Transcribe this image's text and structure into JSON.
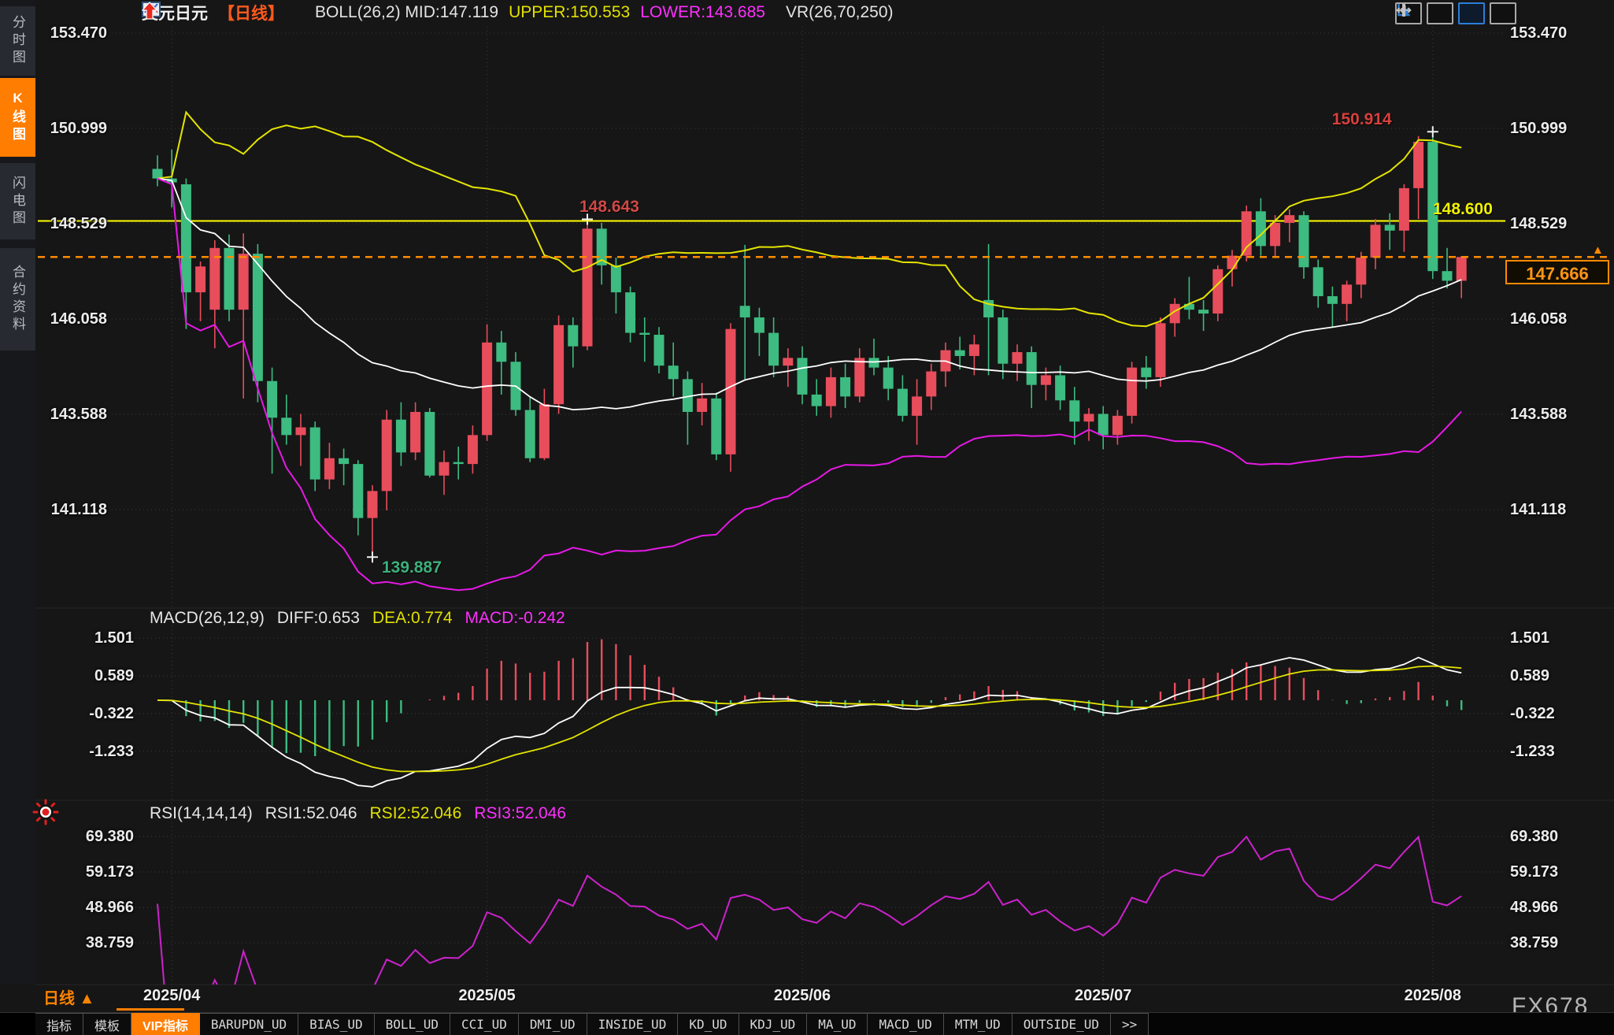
{
  "colors": {
    "background": "#161616",
    "up_red": "#e84d5c",
    "down_green": "#3dbb80",
    "boll_mid_white": "#ffffff",
    "boll_upper_yellow": "#e4e400",
    "boll_lower_magenta": "#e619e6",
    "accent_orange": "#ff7d00",
    "current_price_orange": "#ff8a00",
    "hline_yellow": "#ffff00",
    "annotation_red": "#d8403c",
    "annotation_green": "#3db07c",
    "grid": "#3a3a3a",
    "rsi_line": "#cc22cc"
  },
  "sidebar": {
    "items": [
      {
        "label": "分时图",
        "active": false
      },
      {
        "label": "K线图",
        "active": true
      },
      {
        "label": "闪电图",
        "active": false
      },
      {
        "label": "合约资料",
        "active": false
      }
    ]
  },
  "header": {
    "symbol": "美元日元",
    "period_tag": "【日线】",
    "boll_mid": "BOLL(26,2) MID:147.119",
    "upper": "UPPER:150.553",
    "lower": "LOWER:143.685",
    "vr": "VR(26,70,250)"
  },
  "toolbar": {
    "buttons": [
      {
        "name": "pan-crosshair-button",
        "active": false
      },
      {
        "name": "chart-axes-bars-button",
        "active": false
      },
      {
        "name": "chart-axes-flag-button",
        "active": true
      },
      {
        "name": "compress-axis-button",
        "active": false
      }
    ]
  },
  "chart_data": {
    "type": "candlestick",
    "title": "美元日元 日线 (USD/JPY Daily)",
    "legend_position": "top",
    "grid": "dotted",
    "price_axis_ticks": [
      "153.470",
      "150.999",
      "148.529",
      "146.058",
      "143.588",
      "141.118"
    ],
    "month_ticks": [
      {
        "index": 1,
        "label": "2025/04"
      },
      {
        "index": 23,
        "label": "2025/05"
      },
      {
        "index": 45,
        "label": "2025/06"
      },
      {
        "index": 66,
        "label": "2025/07"
      },
      {
        "index": 89,
        "label": "2025/08"
      }
    ],
    "candles_ohlc": [
      [
        149.95,
        150.3,
        149.5,
        149.7
      ],
      [
        149.7,
        150.45,
        148.95,
        149.6
      ],
      [
        149.55,
        149.7,
        145.8,
        146.75
      ],
      [
        146.75,
        147.55,
        146.0,
        147.42
      ],
      [
        146.3,
        148.1,
        145.3,
        147.9
      ],
      [
        147.9,
        148.25,
        146.0,
        146.3
      ],
      [
        146.3,
        148.28,
        144.0,
        147.75
      ],
      [
        147.75,
        148.0,
        143.9,
        144.45
      ],
      [
        144.45,
        144.8,
        142.05,
        143.5
      ],
      [
        143.5,
        144.1,
        142.8,
        143.05
      ],
      [
        143.05,
        143.6,
        142.25,
        143.25
      ],
      [
        143.25,
        143.4,
        141.6,
        141.9
      ],
      [
        141.9,
        142.85,
        141.65,
        142.45
      ],
      [
        142.45,
        142.7,
        141.75,
        142.3
      ],
      [
        142.3,
        142.4,
        140.45,
        140.9
      ],
      [
        140.9,
        141.75,
        139.887,
        141.6
      ],
      [
        141.6,
        143.7,
        141.1,
        143.45
      ],
      [
        143.45,
        143.9,
        142.25,
        142.6
      ],
      [
        142.6,
        143.9,
        142.4,
        143.65
      ],
      [
        143.65,
        143.75,
        141.95,
        142.0
      ],
      [
        142.0,
        142.65,
        141.5,
        142.35
      ],
      [
        142.35,
        142.75,
        141.9,
        142.3
      ],
      [
        142.3,
        143.3,
        142.05,
        143.05
      ],
      [
        143.05,
        145.92,
        142.9,
        145.45
      ],
      [
        145.45,
        145.75,
        144.1,
        144.95
      ],
      [
        144.95,
        145.2,
        143.55,
        143.7
      ],
      [
        143.7,
        144.05,
        142.35,
        142.45
      ],
      [
        142.45,
        144.25,
        142.4,
        143.85
      ],
      [
        143.85,
        146.15,
        143.6,
        145.9
      ],
      [
        145.9,
        146.1,
        144.8,
        145.35
      ],
      [
        145.35,
        148.643,
        145.25,
        148.4
      ],
      [
        148.4,
        148.55,
        146.95,
        147.45
      ],
      [
        147.45,
        147.65,
        146.2,
        146.75
      ],
      [
        146.75,
        146.9,
        145.45,
        145.7
      ],
      [
        145.7,
        146.1,
        144.95,
        145.65
      ],
      [
        145.65,
        145.85,
        144.65,
        144.85
      ],
      [
        144.85,
        145.45,
        144.05,
        144.5
      ],
      [
        144.5,
        144.7,
        142.8,
        143.65
      ],
      [
        143.65,
        144.4,
        143.3,
        144.0
      ],
      [
        144.0,
        144.15,
        142.4,
        142.55
      ],
      [
        142.55,
        145.95,
        142.1,
        145.8
      ],
      [
        146.4,
        147.98,
        144.5,
        146.1
      ],
      [
        146.1,
        146.35,
        145.1,
        145.7
      ],
      [
        145.7,
        146.1,
        144.55,
        144.85
      ],
      [
        144.85,
        145.3,
        144.3,
        145.05
      ],
      [
        145.05,
        145.35,
        143.85,
        144.1
      ],
      [
        144.1,
        144.5,
        143.55,
        143.8
      ],
      [
        143.8,
        144.8,
        143.5,
        144.55
      ],
      [
        144.55,
        144.9,
        143.75,
        144.05
      ],
      [
        144.05,
        145.3,
        143.9,
        145.05
      ],
      [
        145.05,
        145.55,
        144.6,
        144.8
      ],
      [
        144.8,
        145.1,
        143.95,
        144.25
      ],
      [
        144.25,
        144.6,
        143.4,
        143.55
      ],
      [
        143.55,
        144.5,
        142.8,
        144.05
      ],
      [
        144.05,
        144.9,
        143.7,
        144.7
      ],
      [
        144.7,
        145.45,
        144.3,
        145.25
      ],
      [
        145.25,
        145.6,
        144.75,
        145.1
      ],
      [
        145.1,
        145.65,
        144.6,
        145.4
      ],
      [
        146.55,
        148.0,
        144.6,
        146.1
      ],
      [
        146.1,
        146.3,
        144.5,
        144.9
      ],
      [
        144.9,
        145.4,
        144.45,
        145.2
      ],
      [
        145.2,
        145.35,
        143.75,
        144.35
      ],
      [
        144.35,
        144.8,
        143.95,
        144.6
      ],
      [
        144.6,
        144.85,
        143.7,
        143.95
      ],
      [
        143.95,
        144.3,
        142.8,
        143.4
      ],
      [
        143.4,
        143.75,
        142.9,
        143.6
      ],
      [
        143.6,
        143.8,
        142.68,
        143.05
      ],
      [
        143.05,
        143.7,
        142.8,
        143.55
      ],
      [
        143.55,
        144.95,
        143.35,
        144.8
      ],
      [
        144.8,
        145.1,
        144.25,
        144.55
      ],
      [
        144.55,
        146.1,
        144.3,
        145.95
      ],
      [
        145.95,
        146.6,
        145.6,
        146.45
      ],
      [
        146.45,
        147.15,
        146.05,
        146.3
      ],
      [
        146.3,
        146.55,
        145.75,
        146.2
      ],
      [
        146.2,
        147.45,
        146.0,
        147.35
      ],
      [
        147.35,
        147.85,
        146.9,
        147.7
      ],
      [
        147.7,
        149.0,
        147.55,
        148.85
      ],
      [
        148.85,
        149.19,
        147.7,
        147.95
      ],
      [
        147.95,
        148.75,
        147.65,
        148.55
      ],
      [
        148.55,
        148.9,
        148.05,
        148.75
      ],
      [
        148.75,
        148.85,
        147.1,
        147.4
      ],
      [
        147.4,
        147.6,
        146.35,
        146.65
      ],
      [
        146.65,
        146.9,
        145.86,
        146.45
      ],
      [
        146.45,
        147.05,
        146.0,
        146.95
      ],
      [
        146.95,
        147.8,
        146.6,
        147.65
      ],
      [
        147.65,
        148.65,
        147.35,
        148.5
      ],
      [
        148.5,
        148.8,
        147.85,
        148.35
      ],
      [
        148.35,
        149.55,
        147.8,
        149.45
      ],
      [
        149.45,
        150.8,
        148.65,
        150.65
      ],
      [
        150.65,
        150.914,
        147.1,
        147.3
      ],
      [
        147.3,
        147.9,
        146.85,
        147.05
      ],
      [
        147.05,
        147.69,
        146.6,
        147.666
      ]
    ],
    "overlays": {
      "boll": {
        "period": 26,
        "deviation": 2
      }
    },
    "annotations": {
      "recent_high": {
        "index": 89,
        "price": 150.914,
        "label": "150.914"
      },
      "swing_high": {
        "index": 30,
        "price": 148.643,
        "label": "148.643"
      },
      "swing_low": {
        "index": 15,
        "price": 139.887,
        "label": "139.887"
      },
      "hline": {
        "price": 148.6,
        "label": "148.600"
      },
      "current": {
        "price": 147.666,
        "label": "147.666"
      }
    },
    "macd_pane": {
      "header": "MACD(26,12,9)",
      "diff_label": "DIFF:0.653",
      "dea_label": "DEA:0.774",
      "macd_label": "MACD:-0.242",
      "ticks": [
        "1.501",
        "0.589",
        "-0.322",
        "-1.233"
      ],
      "params": {
        "slow": 26,
        "fast": 12,
        "signal": 9
      }
    },
    "rsi_pane": {
      "header": "RSI(14,14,14)",
      "rsi1_label": "RSI1:52.046",
      "rsi2_label": "RSI2:52.046",
      "rsi3_label": "RSI3:52.046",
      "ticks": [
        "69.380",
        "59.173",
        "48.966",
        "38.759"
      ],
      "params": {
        "period": 14
      }
    }
  },
  "bottom": {
    "period_selector": "日线 ▲",
    "watermark": "FX678",
    "tabs": [
      {
        "label": "指标",
        "cn": true,
        "active": false
      },
      {
        "label": "模板",
        "cn": true,
        "active": false
      },
      {
        "label": "VIP指标",
        "cn": true,
        "active": true
      },
      {
        "label": "BARUPDN_UD",
        "cn": false,
        "active": false
      },
      {
        "label": "BIAS_UD",
        "cn": false,
        "active": false
      },
      {
        "label": "BOLL_UD",
        "cn": false,
        "active": false
      },
      {
        "label": "CCI_UD",
        "cn": false,
        "active": false
      },
      {
        "label": "DMI_UD",
        "cn": false,
        "active": false
      },
      {
        "label": "INSIDE_UD",
        "cn": false,
        "active": false
      },
      {
        "label": "KD_UD",
        "cn": false,
        "active": false
      },
      {
        "label": "KDJ_UD",
        "cn": false,
        "active": false
      },
      {
        "label": "MA_UD",
        "cn": false,
        "active": false
      },
      {
        "label": "MACD_UD",
        "cn": false,
        "active": false
      },
      {
        "label": "MTM_UD",
        "cn": false,
        "active": false
      },
      {
        "label": "OUTSIDE_UD",
        "cn": false,
        "active": false
      },
      {
        "label": ">>",
        "cn": false,
        "active": false
      }
    ]
  }
}
